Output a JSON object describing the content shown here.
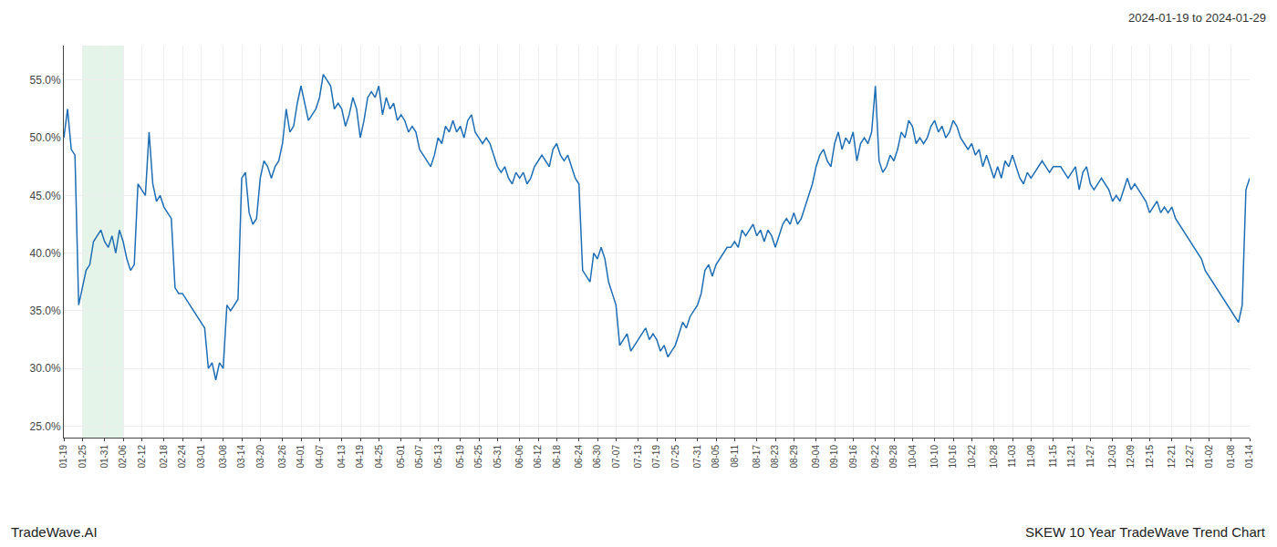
{
  "chart_data": {
    "type": "line",
    "subtitle": "2024-01-19 to 2024-01-29",
    "annotations": [
      "TradeWave.AI",
      "SKEW 10 Year TradeWave Trend Chart"
    ],
    "color": "#1f6eb5",
    "grid": true,
    "highlight": {
      "start": "01-25",
      "end": "02-06",
      "color": "#d4edda"
    },
    "ylim": [
      24.0,
      58.0
    ],
    "yticks": [
      {
        "value": 25.0,
        "label": "25.0%"
      },
      {
        "value": 30.0,
        "label": "30.0%"
      },
      {
        "value": 35.0,
        "label": "35.0%"
      },
      {
        "value": 40.0,
        "label": "40.0%"
      },
      {
        "value": 45.0,
        "label": "45.0%"
      },
      {
        "value": 50.0,
        "label": "50.0%"
      },
      {
        "value": 55.0,
        "label": "55.0%"
      }
    ],
    "categories": [
      "01-19",
      null,
      null,
      null,
      null,
      "01-25",
      null,
      null,
      null,
      null,
      null,
      "01-31",
      null,
      null,
      null,
      null,
      "02-06",
      null,
      null,
      null,
      null,
      "02-12",
      null,
      null,
      null,
      null,
      null,
      "02-18",
      null,
      null,
      null,
      null,
      "02-24",
      null,
      null,
      null,
      null,
      "03-01",
      null,
      null,
      null,
      null,
      null,
      "03-08",
      null,
      null,
      null,
      null,
      "03-14",
      null,
      null,
      null,
      null,
      "03-20",
      null,
      null,
      null,
      null,
      null,
      "03-26",
      null,
      null,
      null,
      null,
      "04-01",
      null,
      null,
      null,
      null,
      "04-07",
      null,
      null,
      null,
      null,
      null,
      "04-13",
      null,
      null,
      null,
      null,
      "04-19",
      null,
      null,
      null,
      null,
      "04-25",
      null,
      null,
      null,
      null,
      null,
      "05-01",
      null,
      null,
      null,
      null,
      "05-07",
      null,
      null,
      null,
      null,
      "05-13",
      null,
      null,
      null,
      null,
      null,
      "05-19",
      null,
      null,
      null,
      null,
      "05-25",
      null,
      null,
      null,
      null,
      "05-31",
      null,
      null,
      null,
      null,
      null,
      "06-06",
      null,
      null,
      null,
      null,
      "06-12",
      null,
      null,
      null,
      null,
      "06-18",
      null,
      null,
      null,
      null,
      null,
      "06-24",
      null,
      null,
      null,
      null,
      "06-30",
      null,
      null,
      null,
      null,
      "07-07",
      null,
      null,
      null,
      null,
      null,
      "07-13",
      null,
      null,
      null,
      null,
      "07-19",
      null,
      null,
      null,
      null,
      "07-25",
      null,
      null,
      null,
      null,
      null,
      "07-31",
      null,
      null,
      null,
      null,
      "08-05",
      null,
      null,
      null,
      null,
      "08-11",
      null,
      null,
      null,
      null,
      null,
      "08-17",
      null,
      null,
      null,
      null,
      "08-23",
      null,
      null,
      null,
      null,
      "08-29",
      null,
      null,
      null,
      null,
      null,
      "09-04",
      null,
      null,
      null,
      null,
      "09-10",
      null,
      null,
      null,
      null,
      "09-16",
      null,
      null,
      null,
      null,
      null,
      "09-22",
      null,
      null,
      null,
      null,
      "09-28",
      null,
      null,
      null,
      null,
      "10-04",
      null,
      null,
      null,
      null,
      null,
      "10-10",
      null,
      null,
      null,
      null,
      "10-16",
      null,
      null,
      null,
      null,
      "10-22",
      null,
      null,
      null,
      null,
      null,
      "10-28",
      null,
      null,
      null,
      null,
      "11-03",
      null,
      null,
      null,
      null,
      "11-09",
      null,
      null,
      null,
      null,
      null,
      "11-15",
      null,
      null,
      null,
      null,
      "11-21",
      null,
      null,
      null,
      null,
      "11-27",
      null,
      null,
      null,
      null,
      null,
      "12-03",
      null,
      null,
      null,
      null,
      "12-09",
      null,
      null,
      null,
      null,
      "12-15",
      null,
      null,
      null,
      null,
      null,
      "12-21",
      null,
      null,
      null,
      null,
      "12-27",
      null,
      null,
      null,
      null,
      "01-02",
      null,
      null,
      null,
      null,
      null,
      "01-08",
      null,
      null,
      null,
      null,
      "01-14"
    ],
    "values": [
      50.0,
      52.5,
      49.0,
      48.5,
      35.5,
      37.0,
      38.5,
      39.0,
      41.0,
      41.5,
      42.0,
      41.0,
      40.5,
      41.5,
      40.0,
      42.0,
      41.0,
      39.5,
      38.5,
      39.0,
      46.0,
      45.5,
      45.0,
      50.5,
      46.0,
      44.5,
      45.0,
      44.0,
      43.5,
      43.0,
      37.0,
      36.5,
      36.5,
      36.0,
      35.5,
      35.0,
      34.5,
      34.0,
      33.5,
      30.0,
      30.5,
      29.0,
      30.5,
      30.0,
      35.5,
      35.0,
      35.5,
      36.0,
      46.5,
      47.0,
      43.5,
      42.5,
      43.0,
      46.5,
      48.0,
      47.5,
      46.5,
      47.5,
      48.0,
      49.5,
      52.5,
      50.5,
      51.0,
      53.0,
      54.5,
      53.0,
      51.5,
      52.0,
      52.5,
      53.5,
      55.5,
      55.0,
      54.5,
      52.5,
      53.0,
      52.5,
      51.0,
      52.0,
      53.5,
      52.5,
      50.0,
      51.5,
      53.5,
      54.0,
      53.5,
      54.5,
      52.0,
      53.5,
      52.5,
      53.0,
      51.5,
      52.0,
      51.5,
      50.5,
      51.0,
      50.5,
      49.0,
      48.5,
      48.0,
      47.5,
      48.5,
      50.0,
      49.5,
      51.0,
      50.5,
      51.5,
      50.5,
      51.0,
      50.0,
      51.5,
      52.0,
      50.5,
      50.0,
      49.5,
      50.0,
      49.5,
      48.5,
      47.5,
      47.0,
      47.5,
      46.5,
      46.0,
      47.0,
      46.5,
      47.0,
      46.0,
      46.5,
      47.5,
      48.0,
      48.5,
      48.0,
      47.5,
      49.0,
      49.5,
      48.5,
      48.0,
      48.5,
      47.5,
      46.5,
      46.0,
      38.5,
      38.0,
      37.5,
      40.0,
      39.5,
      40.5,
      39.5,
      37.5,
      36.5,
      35.5,
      32.0,
      32.5,
      33.0,
      31.5,
      32.0,
      32.5,
      33.0,
      33.5,
      32.5,
      33.0,
      32.5,
      31.5,
      32.0,
      31.0,
      31.5,
      32.0,
      33.0,
      34.0,
      33.5,
      34.5,
      35.0,
      35.5,
      36.5,
      38.5,
      39.0,
      38.0,
      39.0,
      39.5,
      40.0,
      40.5,
      40.5,
      41.0,
      40.5,
      42.0,
      41.5,
      42.0,
      42.5,
      41.5,
      42.0,
      41.0,
      42.0,
      41.5,
      40.5,
      41.5,
      42.5,
      43.0,
      42.5,
      43.5,
      42.5,
      43.0,
      44.0,
      45.0,
      46.0,
      47.5,
      48.5,
      49.0,
      48.0,
      47.5,
      49.5,
      50.5,
      49.0,
      50.0,
      49.5,
      50.5,
      48.0,
      49.5,
      50.0,
      49.5,
      50.5,
      54.5,
      48.0,
      47.0,
      47.5,
      48.5,
      48.0,
      49.0,
      50.5,
      50.0,
      51.5,
      51.0,
      49.5,
      50.0,
      49.5,
      50.0,
      51.0,
      51.5,
      50.5,
      51.0,
      50.0,
      50.5,
      51.5,
      51.0,
      50.0,
      49.5,
      49.0,
      49.5,
      48.5,
      49.0,
      47.5,
      48.5,
      47.5,
      46.5,
      47.5,
      46.5,
      48.0,
      47.5,
      48.5,
      47.5,
      46.5,
      46.0,
      47.0,
      46.5,
      47.0,
      47.5,
      48.0,
      47.5,
      47.0,
      47.5,
      47.5,
      47.5,
      47.0,
      46.5,
      47.0,
      47.5,
      45.5,
      47.0,
      47.5,
      46.0,
      45.5,
      46.0,
      46.5,
      46.0,
      45.5,
      44.5,
      45.0,
      44.5,
      45.5,
      46.5,
      45.5,
      46.0,
      45.5,
      45.0,
      44.5,
      43.5,
      44.0,
      44.5,
      43.5,
      44.0,
      43.5,
      44.0,
      43.0,
      42.5,
      42.0,
      41.5,
      41.0,
      40.5,
      40.0,
      39.5,
      38.5,
      38.0,
      37.5,
      37.0,
      36.5,
      36.0,
      35.5,
      35.0,
      34.5,
      34.0,
      35.5,
      45.5,
      46.5
    ]
  }
}
